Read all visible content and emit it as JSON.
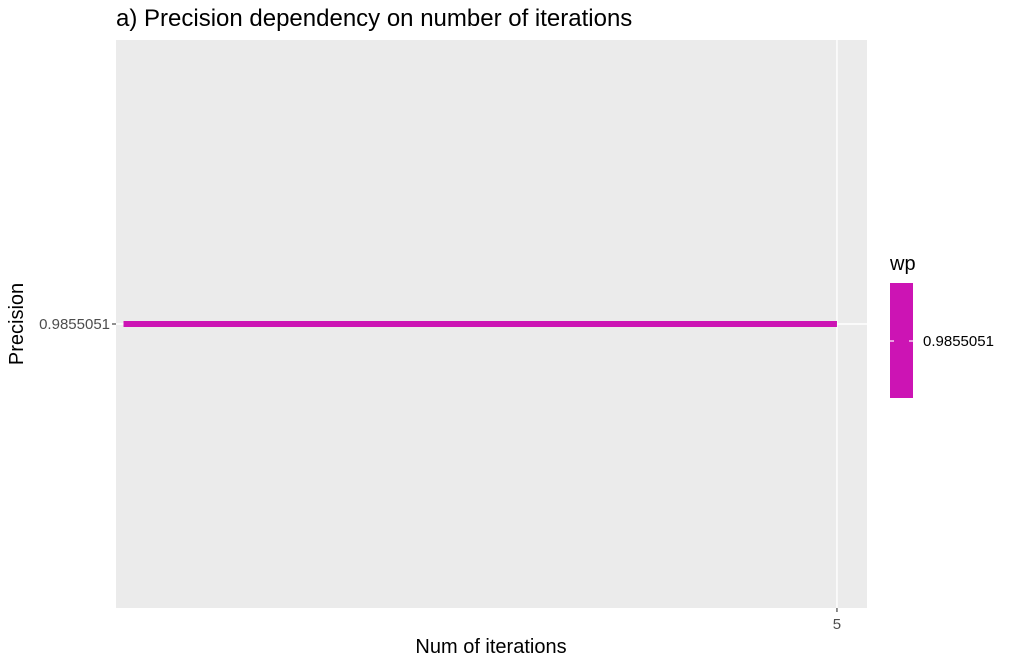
{
  "chart_data": {
    "type": "line",
    "title": "a) Precision dependency on number of iterations",
    "xlabel": "Num of iterations",
    "ylabel": "Precision",
    "x_ticks": [
      5
    ],
    "y_ticks": [
      0.9855051
    ],
    "y_tick_labels": [
      "0.9855051"
    ],
    "x_ticks_labels": [
      "5"
    ],
    "xlim": [
      0.2,
      5.2
    ],
    "ylim": [
      0.9855046,
      0.9855056
    ],
    "grid": true,
    "series": [
      {
        "x": [
          0.25,
          5
        ],
        "y": [
          0.9855051,
          0.9855051
        ],
        "color": "#cc14b4"
      }
    ],
    "legend": {
      "title": "wp",
      "label": "0.9855051",
      "color": "#cc14b4",
      "position": "right"
    },
    "panel_background": "#ebebeb",
    "grid_color": "#ffffff"
  }
}
